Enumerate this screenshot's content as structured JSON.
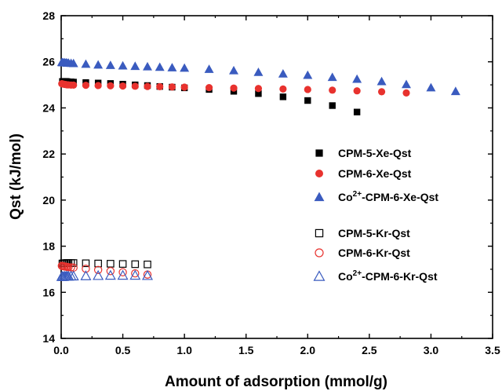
{
  "chart_data": {
    "type": "scatter",
    "xlabel": "Amount of adsorption (mmol/g)",
    "ylabel": "Qst (kJ/mol)",
    "xlim": [
      0,
      3.5
    ],
    "ylim": [
      14,
      28
    ],
    "xticks": [
      "0.0",
      "0.5",
      "1.0",
      "1.5",
      "2.0",
      "2.5",
      "3.0",
      "3.5"
    ],
    "yticks": [
      "14",
      "16",
      "18",
      "20",
      "22",
      "24",
      "26",
      "28"
    ],
    "grid": false,
    "legend_position": "right",
    "series": [
      {
        "name": "CPM-5-Xe-Qst",
        "marker": "square",
        "filled": true,
        "color": "#000000",
        "x": [
          0.01,
          0.02,
          0.03,
          0.04,
          0.05,
          0.06,
          0.08,
          0.1,
          0.2,
          0.3,
          0.4,
          0.5,
          0.6,
          0.7,
          0.8,
          0.9,
          1.0,
          1.2,
          1.4,
          1.6,
          1.8,
          2.0,
          2.2,
          2.4
        ],
        "y": [
          25.15,
          25.15,
          25.15,
          25.15,
          25.14,
          25.13,
          25.13,
          25.12,
          25.1,
          25.08,
          25.06,
          25.03,
          25.0,
          24.97,
          24.93,
          24.9,
          24.87,
          24.8,
          24.72,
          24.62,
          24.48,
          24.32,
          24.1,
          23.82
        ]
      },
      {
        "name": "CPM-6-Xe-Qst",
        "marker": "circle",
        "filled": true,
        "color": "#e8322e",
        "x": [
          0.005,
          0.01,
          0.02,
          0.03,
          0.04,
          0.05,
          0.06,
          0.08,
          0.1,
          0.2,
          0.3,
          0.4,
          0.5,
          0.6,
          0.7,
          0.8,
          0.9,
          1.0,
          1.2,
          1.4,
          1.6,
          1.8,
          2.0,
          2.2,
          2.4,
          2.6,
          2.8
        ],
        "y": [
          25.05,
          25.04,
          25.03,
          25.02,
          25.01,
          25.0,
          25.0,
          24.99,
          24.99,
          24.98,
          24.97,
          24.96,
          24.95,
          24.94,
          24.93,
          24.92,
          24.91,
          24.9,
          24.88,
          24.86,
          24.84,
          24.82,
          24.8,
          24.77,
          24.74,
          24.7,
          24.65
        ]
      },
      {
        "name": "Co2+-CPM-6-Xe-Qst",
        "marker": "triangle",
        "filled": true,
        "color": "#3a5bbf",
        "x": [
          0.005,
          0.01,
          0.02,
          0.03,
          0.04,
          0.05,
          0.06,
          0.08,
          0.1,
          0.2,
          0.3,
          0.4,
          0.5,
          0.6,
          0.7,
          0.8,
          0.9,
          1.0,
          1.2,
          1.4,
          1.6,
          1.8,
          2.0,
          2.2,
          2.4,
          2.6,
          2.8,
          3.0,
          3.2
        ],
        "y": [
          25.98,
          25.97,
          25.97,
          25.96,
          25.96,
          25.95,
          25.95,
          25.94,
          25.93,
          25.9,
          25.87,
          25.85,
          25.83,
          25.81,
          25.79,
          25.77,
          25.75,
          25.73,
          25.68,
          25.62,
          25.55,
          25.48,
          25.42,
          25.33,
          25.25,
          25.15,
          25.02,
          24.88,
          24.72
        ]
      },
      {
        "name": "CPM-5-Kr-Qst",
        "marker": "square",
        "filled": false,
        "color": "#000000",
        "x": [
          0.01,
          0.02,
          0.03,
          0.04,
          0.05,
          0.06,
          0.08,
          0.1,
          0.2,
          0.3,
          0.4,
          0.5,
          0.6,
          0.7
        ],
        "y": [
          17.25,
          17.26,
          17.26,
          17.27,
          17.27,
          17.27,
          17.27,
          17.27,
          17.26,
          17.25,
          17.24,
          17.23,
          17.22,
          17.21
        ]
      },
      {
        "name": "CPM-6-Kr-Qst",
        "marker": "circle",
        "filled": false,
        "color": "#e8322e",
        "x": [
          0.005,
          0.01,
          0.02,
          0.03,
          0.04,
          0.05,
          0.06,
          0.08,
          0.1,
          0.2,
          0.3,
          0.4,
          0.5,
          0.6,
          0.7
        ],
        "y": [
          17.15,
          17.14,
          17.13,
          17.12,
          17.11,
          17.1,
          17.09,
          17.08,
          17.07,
          17.02,
          16.97,
          16.92,
          16.87,
          16.82,
          16.77
        ]
      },
      {
        "name": "Co2+-CPM-6-Kr-Qst",
        "marker": "triangle",
        "filled": false,
        "color": "#3a5bbf",
        "x": [
          0.005,
          0.01,
          0.02,
          0.03,
          0.04,
          0.05,
          0.06,
          0.08,
          0.1,
          0.2,
          0.3,
          0.4,
          0.5,
          0.6,
          0.7
        ],
        "y": [
          16.68,
          16.68,
          16.68,
          16.69,
          16.69,
          16.69,
          16.69,
          16.7,
          16.7,
          16.71,
          16.72,
          16.73,
          16.73,
          16.73,
          16.72
        ]
      }
    ],
    "legend": [
      {
        "main": "CPM-5-Xe-Qst",
        "series": 0
      },
      {
        "main": "CPM-6-Xe-Qst",
        "series": 1
      },
      {
        "prefix": "Co",
        "sup": "2+",
        "main": "-CPM-6-Xe-Qst",
        "series": 2
      },
      {
        "main": "CPM-5-Kr-Qst",
        "series": 3
      },
      {
        "main": "CPM-6-Kr-Qst",
        "series": 4
      },
      {
        "prefix": "Co",
        "sup": "2+",
        "main": "-CPM-6-Kr-Qst",
        "series": 5
      }
    ]
  }
}
